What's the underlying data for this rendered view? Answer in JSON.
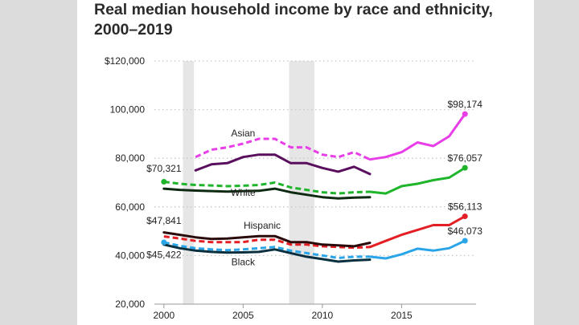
{
  "chart_data": {
    "type": "line",
    "title": "Real median household income by race and ethnicity, 2000–2019",
    "title_lines": [
      "Real median household income by race and ethnicity,",
      "2000–2019"
    ],
    "xlabel": "",
    "ylabel": "",
    "xlim": [
      1999.4,
      2019.7
    ],
    "ylim": [
      20000,
      120000
    ],
    "x_ticks": [
      2000,
      2005,
      2010,
      2015
    ],
    "y_ticks": [
      {
        "value": 20000,
        "label": "20,000"
      },
      {
        "value": 40000,
        "label": "40,000"
      },
      {
        "value": 60000,
        "label": "60,000"
      },
      {
        "value": 80000,
        "label": "80,000"
      },
      {
        "value": 100000,
        "label": "100,000"
      },
      {
        "value": 120000,
        "label": "$120,000"
      }
    ],
    "recessions": [
      [
        2001.2,
        2001.9
      ],
      [
        2007.9,
        2009.5
      ]
    ],
    "series": [
      {
        "name": "Asian",
        "color": "#e83ee8",
        "dashed": {
          "x": [
            2002,
            2003,
            2004,
            2005,
            2006,
            2007,
            2008,
            2009,
            2010,
            2011,
            2012,
            2013
          ],
          "values": [
            80500,
            83500,
            84500,
            86000,
            88000,
            88000,
            84500,
            84500,
            81500,
            80500,
            82500,
            79500
          ]
        },
        "solid": {
          "x": [
            2013,
            2014,
            2015,
            2016,
            2017,
            2018,
            2019
          ],
          "values": [
            79500,
            80500,
            82500,
            86500,
            85000,
            89000,
            98174
          ]
        },
        "end_label": "$98,174"
      },
      {
        "name": "Asian (alt)",
        "color": "#5a0e5e",
        "dashed": null,
        "solid": {
          "x": [
            2002,
            2003,
            2004,
            2005,
            2006,
            2007,
            2008,
            2009,
            2010,
            2011,
            2012,
            2013
          ],
          "values": [
            75000,
            77500,
            78000,
            80500,
            81500,
            81500,
            78000,
            78000,
            76000,
            74500,
            76500,
            73500
          ]
        },
        "end_label": ""
      },
      {
        "name": "White",
        "color": "#1fb52b",
        "dashed": {
          "x": [
            2000,
            2001,
            2002,
            2003,
            2004,
            2005,
            2006,
            2007,
            2008,
            2009,
            2010,
            2011,
            2012,
            2013
          ],
          "values": [
            70321,
            69500,
            69000,
            68800,
            68500,
            68700,
            69000,
            70000,
            68000,
            67000,
            66000,
            65500,
            66000,
            66200
          ]
        },
        "solid": {
          "x": [
            2013,
            2014,
            2015,
            2016,
            2017,
            2018,
            2019
          ],
          "values": [
            66200,
            65500,
            68500,
            69500,
            71000,
            72000,
            76057
          ]
        },
        "end_label": "$76,057",
        "start_label": "$70,321"
      },
      {
        "name": "White (alt)",
        "color": "#0f2a12",
        "dashed": null,
        "solid": {
          "x": [
            2000,
            2001,
            2002,
            2003,
            2004,
            2005,
            2006,
            2007,
            2008,
            2009,
            2010,
            2011,
            2012,
            2013
          ],
          "values": [
            67500,
            67000,
            66700,
            66500,
            66300,
            66500,
            66600,
            67500,
            66000,
            65000,
            64000,
            63500,
            63800,
            64000
          ]
        },
        "end_label": ""
      },
      {
        "name": "Hispanic",
        "color": "#e31e24",
        "dashed": {
          "x": [
            2000,
            2001,
            2002,
            2003,
            2004,
            2005,
            2006,
            2007,
            2008,
            2009,
            2010,
            2011,
            2012,
            2013
          ],
          "values": [
            47841,
            47000,
            46000,
            45500,
            45500,
            45500,
            46500,
            46500,
            44500,
            44500,
            43800,
            43500,
            43200,
            43500
          ]
        },
        "solid": {
          "x": [
            2013,
            2014,
            2015,
            2016,
            2017,
            2018,
            2019
          ],
          "values": [
            43500,
            46000,
            48500,
            50500,
            52500,
            52500,
            56113
          ]
        },
        "end_label": "$56,113"
      },
      {
        "name": "Hispanic (alt)",
        "color": "#2a0a0a",
        "dashed": null,
        "solid": {
          "x": [
            2000,
            2001,
            2002,
            2003,
            2004,
            2005,
            2006,
            2007,
            2008,
            2009,
            2010,
            2011,
            2012,
            2013
          ],
          "values": [
            49500,
            48500,
            47500,
            46800,
            47000,
            47500,
            48000,
            48000,
            45500,
            45500,
            44500,
            44200,
            43800,
            45200
          ]
        },
        "end_label": ""
      },
      {
        "name": "Black",
        "color": "#2aa5e8",
        "dashed": {
          "x": [
            2000,
            2001,
            2002,
            2003,
            2004,
            2005,
            2006,
            2007,
            2008,
            2009,
            2010,
            2011,
            2012,
            2013
          ],
          "values": [
            45422,
            44000,
            43000,
            42500,
            42200,
            42500,
            43000,
            43500,
            42000,
            41000,
            40000,
            39000,
            39500,
            39500
          ]
        },
        "solid": {
          "x": [
            2013,
            2014,
            2015,
            2016,
            2017,
            2018,
            2019
          ],
          "values": [
            39500,
            38800,
            40500,
            42800,
            42000,
            43000,
            46073
          ]
        },
        "end_label": "$46,073",
        "start_label": "$45,422"
      },
      {
        "name": "Black (alt)",
        "color": "#0a2f3f",
        "dashed": null,
        "solid": {
          "x": [
            2000,
            2001,
            2002,
            2003,
            2004,
            2005,
            2006,
            2007,
            2008,
            2009,
            2010,
            2011,
            2012,
            2013
          ],
          "values": [
            44500,
            43000,
            42000,
            41500,
            41200,
            41300,
            41500,
            42500,
            41000,
            39500,
            38500,
            37500,
            38000,
            38300
          ]
        },
        "end_label": ""
      }
    ],
    "annotations": [
      {
        "text": "Asian",
        "x": 2005,
        "y": 89000
      },
      {
        "text": "White",
        "x": 2005,
        "y": 64500
      },
      {
        "text": "Hispanic",
        "x": 2006.2,
        "y": 51000
      },
      {
        "text": "Black",
        "x": 2005,
        "y": 36000
      },
      {
        "text": "$70,321",
        "x": 2000,
        "y": 74500
      },
      {
        "text": "$47,841",
        "x": 2000,
        "y": 53000
      },
      {
        "text": "$45,422",
        "x": 2000,
        "y": 39000
      }
    ]
  },
  "colors": {
    "background": "#dcdcdc",
    "card": "#ffffff",
    "recession": "#e6e6e6",
    "grid": "#c8c8c8",
    "axis": "#999999"
  }
}
